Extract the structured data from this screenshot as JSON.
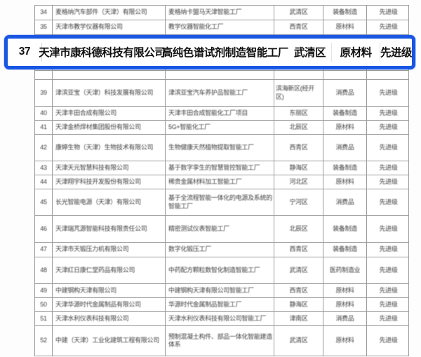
{
  "colors": {
    "highlight_border": "#1956e3",
    "table_border": "#9a9a9a",
    "text": "#3d3d3d"
  },
  "highlight": {
    "row": {
      "num": "37",
      "company": "天津市康科德科技有限公司",
      "factory": "高纯色谱试剂制造智能工厂",
      "district": "武清区",
      "category": "原材料",
      "level": "先进级"
    }
  },
  "table": {
    "rows": [
      {
        "num": "34",
        "company": "麦格纳汽车部件（天津）有限公司",
        "factory": "麦格纳卡盟马天津智能工厂",
        "district": "武清区",
        "category": "装备制造",
        "level": "先进级"
      },
      {
        "num": "35",
        "company": "天津市教学仪器有限公司",
        "factory": "教学仪器智能化工厂",
        "district": "西青区",
        "category": "原材料",
        "level": "先进级"
      },
      {
        "num": "",
        "company": "",
        "factory": "",
        "district": "",
        "category": "",
        "level": ""
      },
      {
        "num": "39",
        "company": "津滨亚宝（天津）科技发展有限公司",
        "factory": "津滨亚宝汽车养护品智能工厂",
        "district": "滨海新区(经开区)",
        "category": "消费品",
        "level": "先进级"
      },
      {
        "num": "40",
        "company": "天津丰田合成有限公司",
        "factory": "天津丰田合成智能化工厂项目",
        "district": "东丽区",
        "category": "装备制造",
        "level": "先进级"
      },
      {
        "num": "41",
        "company": "天津金桥焊材集团股份有限公司",
        "factory": "5G+智能化工厂",
        "district": "北辰区",
        "category": "原材料",
        "level": "先进级"
      },
      {
        "num": "42",
        "company": "康婷生物（天津）生物技术有限公司",
        "factory": "生物健康天然植物提取智能工厂",
        "district": "西青区",
        "category": "消费品",
        "level": "先进级"
      },
      {
        "num": "43",
        "company": "天津天元智慧科技有限公司",
        "factory": "基于数字孪生的智慧管控智能工厂",
        "district": "静海区",
        "category": "装备制造",
        "level": "先进级"
      },
      {
        "num": "44",
        "company": "天津翔宇科技开发股份有限公司",
        "factory": "稀贵金属材料加工智能工厂",
        "district": "河北区",
        "category": "原材料",
        "level": "先进级"
      },
      {
        "num": "45",
        "company": "长光智能电源（天津）有限公司",
        "factory": "基于全流程智能一体化的电源及系统的智能工厂",
        "district": "宁河区",
        "category": "消费品",
        "level": "先进级"
      },
      {
        "num": "46",
        "company": "天津瑞芃源智能科技有限责任公司",
        "factory": "精密测试仪表智能工厂",
        "district": "北辰区",
        "category": "装备制造",
        "level": "先进级"
      },
      {
        "num": "47",
        "company": "天津市天锻压力机有限公司",
        "factory": "数字化锻压工厂",
        "district": "西青区",
        "category": "装备制造",
        "level": "先进级"
      },
      {
        "num": "48",
        "company": "天津红日康仁堂药品有限公司",
        "factory": "中药配方颗粒数智化制造智能工厂",
        "district": "武清区",
        "category": "医药制造业",
        "level": "先进级"
      },
      {
        "num": "49",
        "company": "中建钢构天津有限公司",
        "factory": "中建钢构天津有限公司智能工厂",
        "district": "西青区",
        "category": "原材料",
        "level": "先进级"
      },
      {
        "num": "50",
        "company": "天津华源时代金属制品有限公司",
        "factory": "华源时代金属制品智能工厂",
        "district": "静海区",
        "category": "原材料",
        "level": "先进级"
      },
      {
        "num": "51",
        "company": "天津水利仪表科技有限公司",
        "factory": "天津水利仪表科技有限公司智能工厂",
        "district": "津南区",
        "category": "消费品",
        "level": "先进级"
      },
      {
        "num": "52",
        "company": "中建（天津）工业化建筑工程有限公司",
        "factory": "预制混凝土构件、部品一体化智能建造体系",
        "district": "武清区",
        "category": "原材料",
        "level": "先进级"
      }
    ]
  }
}
